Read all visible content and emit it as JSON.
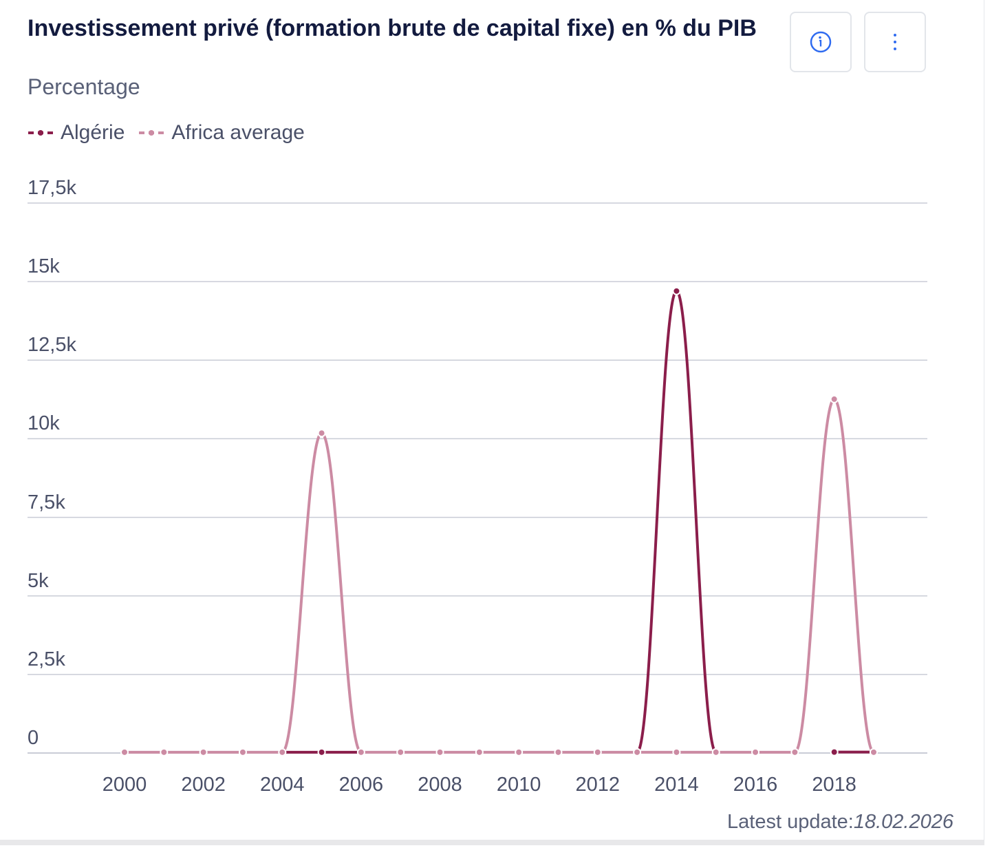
{
  "header": {
    "title": "Investissement privé (formation brute de capital fixe) en % du PIB",
    "subtitle": "Percentage",
    "info_icon": "info-icon",
    "menu_icon": "more-vertical-icon"
  },
  "footer": {
    "label": "Latest update:",
    "date": "18.02.2026"
  },
  "chart_data": {
    "type": "line",
    "title": "Investissement privé (formation brute de capital fixe) en % du PIB",
    "ylabel": "Percentage",
    "ylim": [
      0,
      17500
    ],
    "yticks": [
      "0",
      "2,5k",
      "5k",
      "7,5k",
      "10k",
      "12,5k",
      "15k",
      "17,5k"
    ],
    "ytick_values": [
      0,
      2500,
      5000,
      7500,
      10000,
      12500,
      15000,
      17500
    ],
    "xticks": [
      "2000",
      "2002",
      "2004",
      "2006",
      "2008",
      "2010",
      "2012",
      "2014",
      "2016",
      "2018"
    ],
    "x": [
      2000,
      2001,
      2002,
      2003,
      2004,
      2005,
      2006,
      2007,
      2008,
      2009,
      2010,
      2011,
      2012,
      2013,
      2014,
      2015,
      2016,
      2017,
      2018,
      2019
    ],
    "grid": true,
    "legend": "top-left",
    "series": [
      {
        "name": "Algérie",
        "color": "#8b1e4b",
        "values": [
          null,
          null,
          null,
          null,
          25,
          25,
          25,
          null,
          null,
          null,
          null,
          null,
          null,
          25,
          14700,
          25,
          null,
          null,
          30,
          30
        ]
      },
      {
        "name": "Africa average",
        "color": "#cc8ba3",
        "values": [
          25,
          25,
          25,
          25,
          25,
          10180,
          25,
          25,
          25,
          25,
          25,
          25,
          25,
          25,
          25,
          25,
          25,
          25,
          11260,
          25
        ]
      }
    ]
  }
}
